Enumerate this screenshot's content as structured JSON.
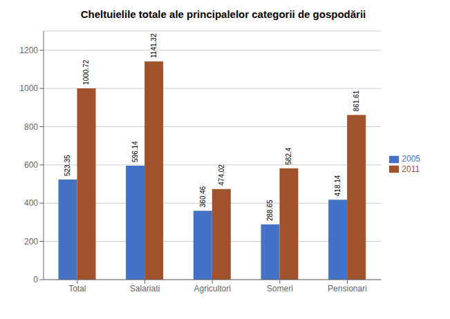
{
  "chart_data": {
    "type": "bar",
    "title": "Cheltuielile totale ale principalelor categorii de gospodării",
    "categories": [
      "Total",
      "Salariati",
      "Agricultori",
      "Someri",
      "Pensionari"
    ],
    "series": [
      {
        "name": "2005",
        "color": "#4472C4",
        "values": [
          523.35,
          596.14,
          360.46,
          288.65,
          418.14
        ]
      },
      {
        "name": "2011",
        "color": "#A0522D",
        "values": [
          1000.72,
          1141.32,
          474.02,
          582.4,
          861.61
        ]
      }
    ],
    "ylim": [
      0,
      1300
    ],
    "yticks": [
      0,
      200,
      400,
      600,
      800,
      1000,
      1200
    ],
    "grid": true,
    "legend": "right",
    "data_labels": true
  }
}
